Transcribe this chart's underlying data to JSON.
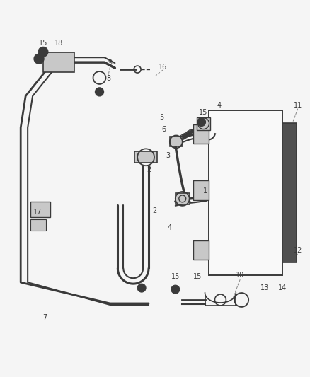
{
  "bg_color": "#f5f5f5",
  "line_color": "#3a3a3a",
  "gray_fill": "#c8c8c8",
  "dark_fill": "#505050",
  "light_fill": "#e8e8e8",
  "white_fill": "#f9f9f9",
  "label_fontsize": 7.0,
  "fig_width": 4.38,
  "fig_height": 5.33,
  "dpi": 100
}
